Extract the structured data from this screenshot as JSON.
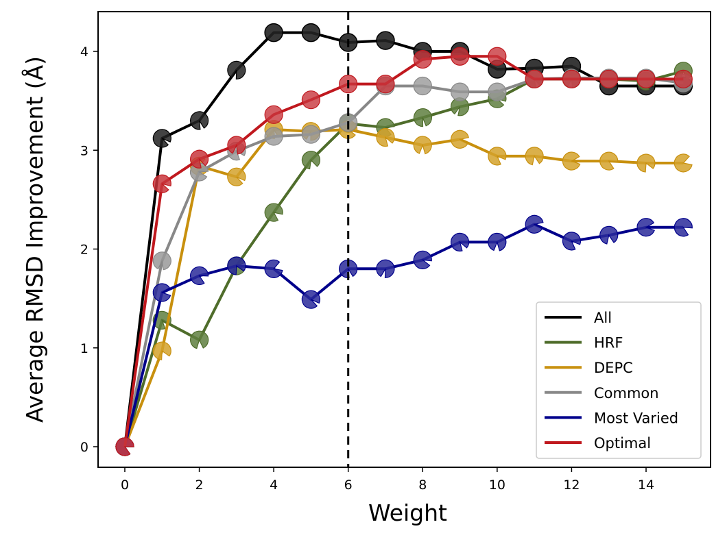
{
  "chart_data": {
    "type": "line",
    "title": "",
    "xlabel": "Weight",
    "ylabel": "Average RMSD Improvement (Å)",
    "xlim": [
      -0.7,
      15.7
    ],
    "ylim": [
      -0.2,
      4.4
    ],
    "xticks": [
      0,
      2,
      4,
      6,
      8,
      10,
      12,
      14
    ],
    "yticks": [
      0,
      1,
      2,
      3,
      4
    ],
    "grid": false,
    "vertical_reference_line": {
      "x": 6,
      "style": "dashed",
      "color": "#000000"
    },
    "legend_position": "lower-right",
    "x": [
      0,
      1,
      2,
      3,
      4,
      5,
      6,
      7,
      8,
      9,
      10,
      11,
      12,
      13,
      14,
      15
    ],
    "series": [
      {
        "name": "All",
        "color": "#000000",
        "marker_color": "#222222",
        "values": [
          0,
          3.12,
          3.3,
          3.81,
          4.19,
          4.19,
          4.09,
          4.11,
          4.0,
          4.0,
          3.82,
          3.83,
          3.85,
          3.65,
          3.65,
          3.65
        ]
      },
      {
        "name": "HRF",
        "color": "#4f6d2b",
        "marker_color": "#5f7f3f",
        "values": [
          0,
          1.28,
          1.08,
          1.83,
          2.37,
          2.9,
          3.27,
          3.23,
          3.33,
          3.44,
          3.52,
          3.72,
          3.72,
          3.72,
          3.7,
          3.8
        ]
      },
      {
        "name": "DEPC",
        "color": "#c8900e",
        "marker_color": "#d4a22c",
        "values": [
          0,
          0.97,
          2.84,
          2.73,
          3.21,
          3.19,
          3.21,
          3.13,
          3.05,
          3.11,
          2.94,
          2.94,
          2.89,
          2.89,
          2.87,
          2.87
        ]
      },
      {
        "name": "Common",
        "color": "#888888",
        "marker_color": "#999999",
        "values": [
          0,
          1.88,
          2.78,
          2.99,
          3.14,
          3.16,
          3.28,
          3.65,
          3.65,
          3.59,
          3.59,
          3.72,
          3.73,
          3.73,
          3.73,
          3.68
        ]
      },
      {
        "name": "Most Varied",
        "color": "#00008b",
        "marker_color": "#2a2a9a",
        "values": [
          0,
          1.56,
          1.73,
          1.83,
          1.8,
          1.49,
          1.8,
          1.8,
          1.89,
          2.07,
          2.07,
          2.25,
          2.08,
          2.14,
          2.22,
          2.22
        ]
      },
      {
        "name": "Optimal",
        "color": "#c0181e",
        "marker_color": "#c8363c",
        "values": [
          0,
          2.66,
          2.91,
          3.05,
          3.36,
          3.51,
          3.67,
          3.67,
          3.92,
          3.95,
          3.95,
          3.72,
          3.72,
          3.72,
          3.72,
          3.72
        ]
      }
    ]
  }
}
